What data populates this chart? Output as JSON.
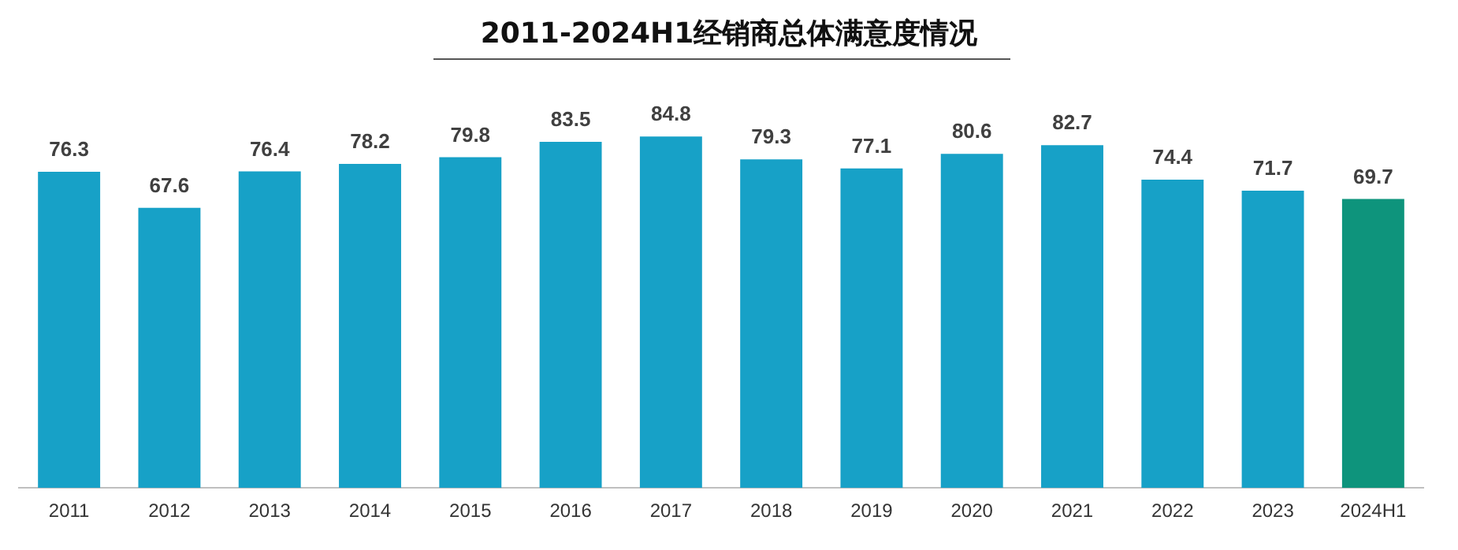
{
  "chart_data": {
    "type": "bar",
    "title": "2011-2024H1经销商总体满意度情况",
    "categories": [
      "2011",
      "2012",
      "2013",
      "2014",
      "2015",
      "2016",
      "2017",
      "2018",
      "2019",
      "2020",
      "2021",
      "2022",
      "2023",
      "2024H1"
    ],
    "values": [
      76.3,
      67.6,
      76.4,
      78.2,
      79.8,
      83.5,
      84.8,
      79.3,
      77.1,
      80.6,
      82.7,
      74.4,
      71.7,
      69.7
    ],
    "colors": [
      "#17a1c7",
      "#17a1c7",
      "#17a1c7",
      "#17a1c7",
      "#17a1c7",
      "#17a1c7",
      "#17a1c7",
      "#17a1c7",
      "#17a1c7",
      "#17a1c7",
      "#17a1c7",
      "#17a1c7",
      "#17a1c7",
      "#0e947c"
    ],
    "data_labels": true,
    "grid": false,
    "legend": false
  }
}
